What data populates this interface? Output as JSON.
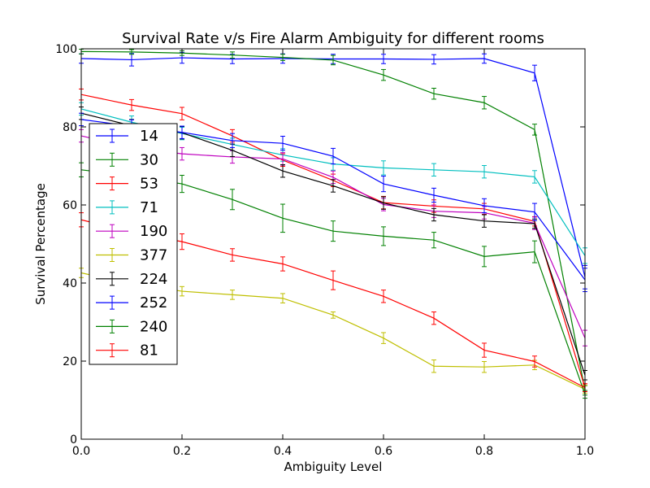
{
  "chart_data": {
    "type": "line",
    "title": "Survival Rate v/s Fire Alarm Ambiguity for different rooms",
    "xlabel": "Ambiguity Level",
    "ylabel": "Survival Percentage",
    "xlim": [
      0.0,
      1.0
    ],
    "ylim": [
      0,
      100
    ],
    "x_ticks": [
      "0.0",
      "0.2",
      "0.4",
      "0.6",
      "0.8",
      "1.0"
    ],
    "y_ticks": [
      "0",
      "20",
      "40",
      "60",
      "80",
      "100"
    ],
    "x": [
      0.0,
      0.1,
      0.2,
      0.3,
      0.4,
      0.5,
      0.6,
      0.7,
      0.8,
      0.9,
      1.0
    ],
    "grid": false,
    "legend_position": "left",
    "series": [
      {
        "name": "14",
        "color": "#0000ff",
        "values": [
          97.5,
          97.2,
          97.7,
          97.4,
          97.5,
          97.4,
          97.4,
          97.3,
          97.5,
          93.8,
          41.5
        ],
        "errors": [
          1.2,
          1.6,
          1.4,
          1.2,
          1.2,
          1.2,
          1.2,
          1.2,
          1.2,
          2.0,
          3.0
        ]
      },
      {
        "name": "30",
        "color": "#008000",
        "values": [
          99.3,
          99.2,
          98.9,
          98.4,
          97.8,
          97.1,
          93.3,
          88.5,
          86.2,
          79.3,
          12.5
        ],
        "errors": [
          0.6,
          0.6,
          0.6,
          0.8,
          0.8,
          1.2,
          1.4,
          1.4,
          1.6,
          1.4,
          1.2
        ]
      },
      {
        "name": "53",
        "color": "#ff0000",
        "values": [
          88.3,
          85.6,
          83.4,
          77.7,
          71.5,
          66.3,
          60.6,
          59.7,
          59.0,
          55.8,
          13.2
        ],
        "errors": [
          1.4,
          1.4,
          1.6,
          1.6,
          1.6,
          1.6,
          1.6,
          1.6,
          1.4,
          1.2,
          1.0
        ]
      },
      {
        "name": "71",
        "color": "#00bfbf",
        "values": [
          84.6,
          81.2,
          78.3,
          75.5,
          72.8,
          70.5,
          69.5,
          69.0,
          68.5,
          67.2,
          47.0
        ],
        "errors": [
          1.6,
          1.6,
          1.6,
          1.6,
          1.6,
          1.6,
          1.8,
          1.6,
          1.6,
          1.6,
          2.0
        ]
      },
      {
        "name": "190",
        "color": "#bf00bf",
        "values": [
          77.7,
          74.8,
          73.1,
          72.3,
          71.8,
          67.1,
          60.1,
          58.4,
          58.0,
          55.3,
          25.9
        ],
        "errors": [
          1.6,
          1.6,
          1.6,
          1.6,
          1.6,
          1.6,
          1.6,
          1.6,
          1.6,
          1.6,
          2.0
        ]
      },
      {
        "name": "377",
        "color": "#bfbf00",
        "values": [
          42.6,
          39.8,
          37.9,
          37.0,
          36.1,
          31.8,
          25.9,
          18.7,
          18.5,
          19.0,
          12.8
        ],
        "errors": [
          1.2,
          1.2,
          1.2,
          1.2,
          1.2,
          0.8,
          1.4,
          1.6,
          1.4,
          1.2,
          1.0
        ]
      },
      {
        "name": "224",
        "color": "#000000",
        "values": [
          83.5,
          80.3,
          78.5,
          74.0,
          68.7,
          64.9,
          60.5,
          57.5,
          55.9,
          55.2,
          16.4
        ],
        "errors": [
          1.6,
          1.6,
          1.6,
          1.6,
          1.6,
          1.6,
          1.6,
          1.6,
          1.6,
          1.2,
          1.2
        ]
      },
      {
        "name": "252",
        "color": "#0000ff",
        "values": [
          81.9,
          80.2,
          78.6,
          76.5,
          75.8,
          72.5,
          65.4,
          62.5,
          59.8,
          58.2,
          40.8
        ],
        "errors": [
          1.6,
          1.6,
          1.6,
          1.8,
          1.8,
          2.0,
          2.0,
          1.8,
          1.8,
          2.2,
          3.0
        ]
      },
      {
        "name": "240",
        "color": "#008000",
        "values": [
          69.0,
          67.5,
          65.4,
          61.4,
          56.6,
          53.3,
          52.0,
          51.0,
          46.8,
          48.0,
          11.5
        ],
        "errors": [
          1.8,
          2.0,
          2.2,
          2.6,
          3.6,
          2.6,
          2.4,
          2.0,
          2.6,
          2.8,
          1.0
        ]
      },
      {
        "name": "81",
        "color": "#ff0000",
        "values": [
          56.2,
          53.0,
          50.6,
          47.2,
          44.9,
          40.7,
          36.6,
          31.0,
          22.8,
          19.9,
          13.2
        ],
        "errors": [
          1.8,
          1.8,
          2.0,
          1.6,
          1.8,
          2.4,
          1.6,
          1.6,
          1.8,
          1.4,
          1.0
        ]
      }
    ]
  }
}
